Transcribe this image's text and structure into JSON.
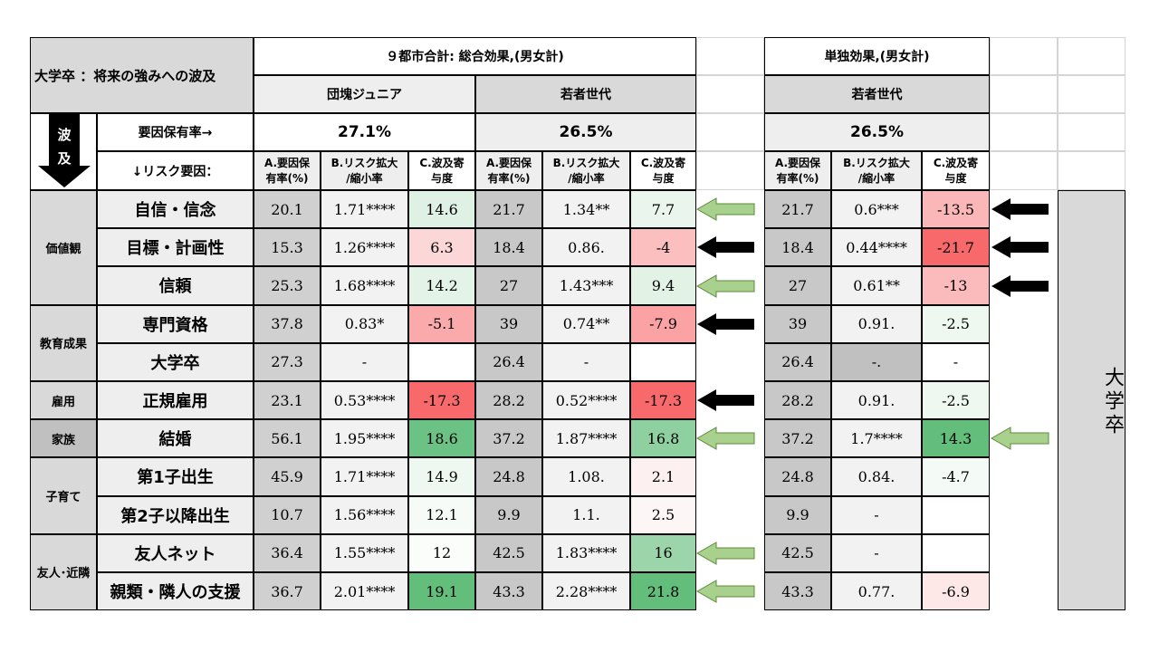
{
  "title": "大学卒 ：将来の強みへの波及",
  "group_left": "９都市合計: 総合効果,(男女計)",
  "group_right": "単独効果,(男女計)",
  "generations": [
    "団塊ジュニア",
    "若者世代",
    "若者世代"
  ],
  "rate_label": "要因保有率→",
  "rates": [
    "27.1%",
    "26.5%",
    "26.5%"
  ],
  "factor_label": "↓リスク要因：",
  "wave_label": [
    "波",
    "及"
  ],
  "col_headers": [
    [
      "A.要因保",
      "有率(%)"
    ],
    [
      "B.リスク拡大",
      "/縮小率"
    ],
    [
      "C.波及寄",
      "与度"
    ]
  ],
  "categories": [
    {
      "label": "価値観"
    },
    {
      "label": "教育成果"
    },
    {
      "label": "雇用"
    },
    {
      "label": "家族"
    },
    {
      "label": "子育て"
    },
    {
      "label": "友人･近隣"
    }
  ],
  "side_label": "大学卒",
  "rows": [
    {
      "factor": "自信・信念",
      "dj": [
        "20.1",
        "1.71****",
        "14.6"
      ],
      "wy": [
        "21.7",
        "1.34**",
        "7.7"
      ],
      "ind": [
        "21.7",
        "0.6***",
        "-13.5"
      ],
      "arrow_mid": "green",
      "arrow_right": "black"
    },
    {
      "factor": "目標・計画性",
      "dj": [
        "15.3",
        "1.26****",
        "6.3"
      ],
      "wy": [
        "18.4",
        "0.86.",
        "-4"
      ],
      "ind": [
        "18.4",
        "0.44****",
        "-21.7"
      ],
      "arrow_mid": "black",
      "arrow_right": "black"
    },
    {
      "factor": "信頼",
      "dj": [
        "25.3",
        "1.68****",
        "14.2"
      ],
      "wy": [
        "27",
        "1.43***",
        "9.4"
      ],
      "ind": [
        "27",
        "0.61**",
        "-13"
      ],
      "arrow_mid": "green",
      "arrow_right": "black"
    },
    {
      "factor": "専門資格",
      "dj": [
        "37.8",
        "0.83*",
        "-5.1"
      ],
      "wy": [
        "39",
        "0.74**",
        "-7.9"
      ],
      "ind": [
        "39",
        "0.91.",
        "-2.5"
      ],
      "arrow_mid": "black",
      "arrow_right": ""
    },
    {
      "factor": "大学卒",
      "dj": [
        "27.3",
        "-",
        ""
      ],
      "wy": [
        "26.4",
        "-",
        ""
      ],
      "ind": [
        "26.4",
        "-.",
        "-"
      ],
      "arrow_mid": "",
      "arrow_right": ""
    },
    {
      "factor": "正規雇用",
      "dj": [
        "23.1",
        "0.53****",
        "-17.3"
      ],
      "wy": [
        "28.2",
        "0.52****",
        "-17.3"
      ],
      "ind": [
        "28.2",
        "0.91.",
        "-2.5"
      ],
      "arrow_mid": "black",
      "arrow_right": ""
    },
    {
      "factor": "結婚",
      "dj": [
        "56.1",
        "1.95****",
        "18.6"
      ],
      "wy": [
        "37.2",
        "1.87****",
        "16.8"
      ],
      "ind": [
        "37.2",
        "1.7****",
        "14.3"
      ],
      "arrow_mid": "green",
      "arrow_right": "green"
    },
    {
      "factor": "第1子出生",
      "dj": [
        "45.9",
        "1.71****",
        "14.9"
      ],
      "wy": [
        "24.8",
        "1.08.",
        "2.1"
      ],
      "ind": [
        "24.8",
        "0.84.",
        "-4.7"
      ],
      "arrow_mid": "",
      "arrow_right": ""
    },
    {
      "factor": "第2子以降出生",
      "dj": [
        "10.7",
        "1.56****",
        "12.1"
      ],
      "wy": [
        "9.9",
        "1.1.",
        "2.5"
      ],
      "ind": [
        "9.9",
        "-",
        ""
      ],
      "arrow_mid": "",
      "arrow_right": ""
    },
    {
      "factor": "友人ネット",
      "dj": [
        "36.4",
        "1.55****",
        "12"
      ],
      "wy": [
        "42.5",
        "1.83****",
        "16"
      ],
      "ind": [
        "42.5",
        "-",
        ""
      ],
      "arrow_mid": "green",
      "arrow_right": ""
    },
    {
      "factor": "親類・隣人の支援",
      "dj": [
        "36.7",
        "2.01****",
        "19.1"
      ],
      "wy": [
        "43.3",
        "2.28****",
        "21.8"
      ],
      "ind": [
        "43.3",
        "0.77.",
        "-6.9"
      ],
      "arrow_mid": "green",
      "arrow_right": ""
    }
  ],
  "colors": {
    "green_dark": "#63be7b",
    "green_mid": "#9bd5a9",
    "green_light": "#dcf0e2",
    "red_dark": "#f8696b",
    "red_mid": "#fbaaab",
    "red_light": "#fde0e0",
    "arrow_green": "#a9d18e",
    "arrow_green_stroke": "#5b8a3a"
  }
}
